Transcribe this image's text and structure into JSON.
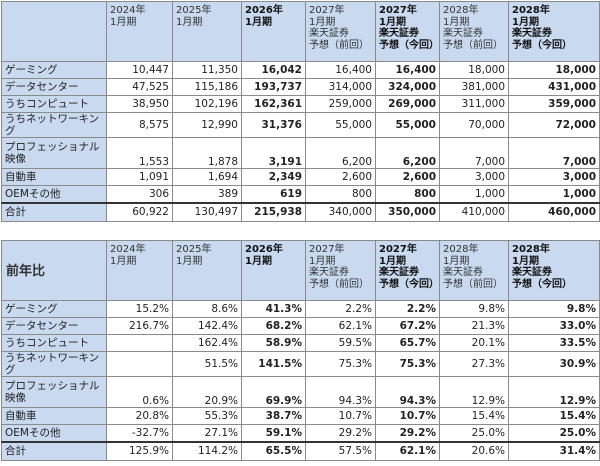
{
  "headers": [
    [
      "2024年",
      "1月期"
    ],
    [
      "2025年",
      "1月期"
    ],
    [
      "2026年",
      "1月期"
    ],
    [
      "2027年",
      "1月期",
      "楽天証券",
      "予想（前回）"
    ],
    [
      "2027年",
      "1月期",
      "楽天証券",
      "予想（今回）"
    ],
    [
      "2028年",
      "1月期",
      "楽天証券",
      "予想（前回）"
    ],
    [
      "2028年",
      "1月期",
      "楽天証券",
      "予想（今回）"
    ]
  ],
  "table1": {
    "corner": "",
    "rows": [
      {
        "label": "ゲーミング",
        "values": [
          "10,447",
          "11,350",
          "16,042",
          "16,400",
          "16,400",
          "18,000",
          "18,000"
        ]
      },
      {
        "label": "データセンター",
        "values": [
          "47,525",
          "115,186",
          "193,737",
          "314,000",
          "324,000",
          "381,000",
          "431,000"
        ]
      },
      {
        "label": "うちコンピュート",
        "values": [
          "38,950",
          "102,196",
          "162,361",
          "259,000",
          "269,000",
          "311,000",
          "359,000"
        ]
      },
      {
        "label": "うちネットワーキング",
        "values": [
          "8,575",
          "12,990",
          "31,376",
          "55,000",
          "55,000",
          "70,000",
          "72,000"
        ]
      },
      {
        "label": "プロフェッショナル映像",
        "values": [
          "1,553",
          "1,878",
          "3,191",
          "6,200",
          "6,200",
          "7,000",
          "7,000"
        ]
      },
      {
        "label": "自動車",
        "values": [
          "1,091",
          "1,694",
          "2,349",
          "2,600",
          "2,600",
          "3,000",
          "3,000"
        ]
      },
      {
        "label": "OEMその他",
        "values": [
          "306",
          "389",
          "619",
          "800",
          "800",
          "1,000",
          "1,000"
        ]
      }
    ],
    "total": {
      "label": "合計",
      "values": [
        "60,922",
        "130,497",
        "215,938",
        "340,000",
        "350,000",
        "410,000",
        "460,000"
      ]
    }
  },
  "table2": {
    "corner": "前年比",
    "rows": [
      {
        "label": "ゲーミング",
        "values": [
          "15.2%",
          "8.6%",
          "41.3%",
          "2.2%",
          "2.2%",
          "9.8%",
          "9.8%"
        ]
      },
      {
        "label": "データセンター",
        "values": [
          "216.7%",
          "142.4%",
          "68.2%",
          "62.1%",
          "67.2%",
          "21.3%",
          "33.0%"
        ]
      },
      {
        "label": "うちコンピュート",
        "values": [
          "",
          "162.4%",
          "58.9%",
          "59.5%",
          "65.7%",
          "20.1%",
          "33.5%"
        ]
      },
      {
        "label": "うちネットワーキング",
        "values": [
          "",
          "51.5%",
          "141.5%",
          "75.3%",
          "75.3%",
          "27.3%",
          "30.9%"
        ]
      },
      {
        "label": "プロフェッショナル映像",
        "values": [
          "0.6%",
          "20.9%",
          "69.9%",
          "94.3%",
          "94.3%",
          "12.9%",
          "12.9%"
        ]
      },
      {
        "label": "自動車",
        "values": [
          "20.8%",
          "55.3%",
          "38.7%",
          "10.7%",
          "10.7%",
          "15.4%",
          "15.4%"
        ]
      },
      {
        "label": "OEMその他",
        "values": [
          "-32.7%",
          "27.1%",
          "59.1%",
          "29.2%",
          "29.2%",
          "25.0%",
          "25.0%"
        ]
      }
    ],
    "total": {
      "label": "合計",
      "values": [
        "125.9%",
        "114.2%",
        "65.5%",
        "57.5%",
        "62.1%",
        "20.6%",
        "31.4%"
      ]
    }
  }
}
